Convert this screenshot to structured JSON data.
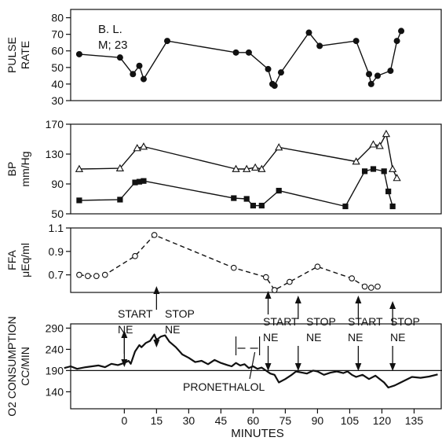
{
  "subject": {
    "line1": "B. L.",
    "line2": "M; 23"
  },
  "xaxis": {
    "label": "MINUTES",
    "ticks": [
      "0",
      "15",
      "30",
      "45",
      "60",
      "75",
      "90",
      "105",
      "120",
      "135"
    ],
    "range": [
      -25,
      148
    ]
  },
  "chart_data": [
    {
      "type": "line",
      "ylabel_lines": [
        "PULSE",
        "RATE"
      ],
      "ylim": [
        30,
        85
      ],
      "yticks": [
        "30",
        "40",
        "50",
        "60",
        "70",
        "80"
      ],
      "series": [
        {
          "marker": "filled-circle",
          "x": [
            -21,
            -2,
            4,
            7,
            9,
            20,
            52,
            58,
            67,
            69,
            70,
            73,
            86,
            91,
            108,
            114,
            115,
            118,
            124,
            127,
            129
          ],
          "y": [
            58,
            56,
            46,
            51,
            43,
            66,
            59,
            59,
            49,
            40,
            39,
            47,
            71,
            63,
            66,
            46,
            40,
            45,
            48,
            66,
            72
          ]
        }
      ]
    },
    {
      "type": "line",
      "ylabel_lines": [
        "BP",
        "mm/Hg"
      ],
      "ylim": [
        50,
        170
      ],
      "yticks": [
        "50",
        "90",
        "130",
        "170"
      ],
      "series": [
        {
          "marker": "open-triangle",
          "x": [
            -21,
            -2,
            6,
            9,
            52,
            57,
            61,
            64,
            72,
            108,
            116,
            119,
            122,
            125,
            127
          ],
          "y": [
            110,
            111,
            138,
            140,
            110,
            110,
            112,
            110,
            139,
            120,
            143,
            141,
            157,
            110,
            98
          ]
        },
        {
          "marker": "filled-square",
          "x": [
            -21,
            -2,
            5,
            7,
            9,
            51,
            57,
            60,
            64,
            72,
            103,
            112,
            116,
            121,
            123,
            125
          ],
          "y": [
            68,
            69,
            92,
            93,
            94,
            71,
            70,
            61,
            61,
            81,
            60,
            107,
            110,
            107,
            80,
            60
          ]
        }
      ]
    },
    {
      "type": "line",
      "ylabel_lines": [
        "FFA",
        "μEq/ml"
      ],
      "ylim": [
        0.55,
        1.1
      ],
      "yticks": [
        "0.7",
        "0.9",
        "1.1"
      ],
      "series": [
        {
          "marker": "open-circle",
          "line": "dashed",
          "x": [
            -21,
            -17,
            -13,
            -9,
            5,
            14,
            51,
            66,
            70,
            77,
            90,
            106,
            112,
            115,
            118
          ],
          "y": [
            0.7,
            0.69,
            0.69,
            0.7,
            0.86,
            1.04,
            0.76,
            0.68,
            0.57,
            0.64,
            0.77,
            0.67,
            0.6,
            0.59,
            0.6
          ]
        }
      ]
    },
    {
      "type": "line",
      "ylabel_lines": [
        "O2 CONSUMPTION",
        "CC/MIN"
      ],
      "ylim": [
        100,
        300
      ],
      "yticks": [
        "140",
        "190",
        "240",
        "290"
      ],
      "baseline": 190,
      "series": [
        {
          "x": [
            -28,
            -25,
            -22,
            -18,
            -15,
            -12,
            -9,
            -6,
            -3,
            0,
            2,
            3,
            5,
            7,
            8,
            10,
            12,
            14,
            15,
            17,
            19,
            21,
            24,
            27,
            30,
            33,
            36,
            39,
            42,
            45,
            48,
            50,
            52,
            54,
            56,
            58,
            60,
            62,
            64,
            66,
            68,
            70,
            72,
            75,
            78,
            80,
            82,
            85,
            88,
            90,
            93,
            96,
            99,
            102,
            104,
            106,
            108,
            111,
            114,
            117,
            119,
            121,
            123,
            126,
            130,
            134,
            138,
            142,
            146
          ],
          "y": [
            196,
            200,
            194,
            198,
            200,
            202,
            198,
            206,
            203,
            208,
            213,
            206,
            235,
            250,
            245,
            255,
            260,
            275,
            262,
            270,
            273,
            258,
            245,
            228,
            220,
            210,
            213,
            205,
            215,
            208,
            203,
            200,
            208,
            202,
            205,
            196,
            200,
            194,
            197,
            190,
            183,
            180,
            162,
            170,
            180,
            188,
            186,
            183,
            190,
            188,
            180,
            185,
            188,
            184,
            188,
            180,
            175,
            180,
            170,
            178,
            170,
            162,
            150,
            155,
            165,
            175,
            173,
            176,
            181
          ]
        }
      ]
    }
  ],
  "annotations": [
    {
      "lines": [
        "START",
        "NE"
      ],
      "x": 0
    },
    {
      "lines": [
        "STOP",
        "NE"
      ],
      "x": 15
    },
    {
      "lines": [
        "START",
        "NE"
      ],
      "x": 67
    },
    {
      "lines": [
        "STOP",
        "NE"
      ],
      "x": 81
    },
    {
      "lines": [
        "START",
        "NE"
      ],
      "x": 109
    },
    {
      "lines": [
        "STOP",
        "NE"
      ],
      "x": 125
    }
  ],
  "pronethalol": {
    "label": "PRONETHALOL",
    "from": 52,
    "to": 63
  }
}
